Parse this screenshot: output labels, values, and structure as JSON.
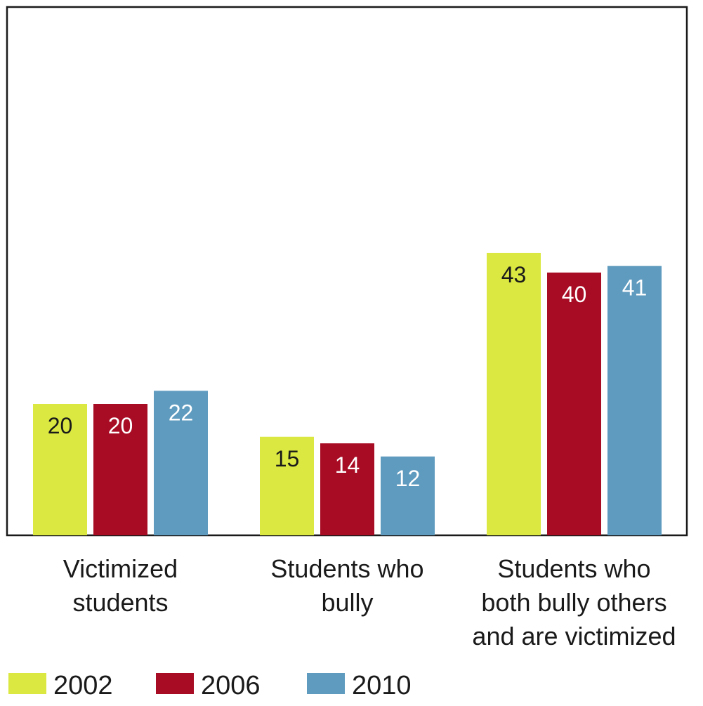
{
  "chart_data": {
    "type": "bar",
    "categories": [
      [
        "Victimized",
        "students"
      ],
      [
        "Students who",
        "bully"
      ],
      [
        "Students who",
        "both bully others",
        "and are victimized"
      ]
    ],
    "series": [
      {
        "name": "2002",
        "color": "#dbe841",
        "label_color": "#1a1a1a",
        "values": [
          20,
          15,
          43
        ]
      },
      {
        "name": "2006",
        "color": "#a80c24",
        "label_color": "#ffffff",
        "values": [
          20,
          14,
          40
        ]
      },
      {
        "name": "2010",
        "color": "#5f9bbf",
        "label_color": "#ffffff",
        "values": [
          22,
          12,
          41
        ]
      }
    ],
    "ylim": [
      0,
      80
    ],
    "grid": false,
    "legend_position": "bottom-left",
    "data_labels": true
  }
}
